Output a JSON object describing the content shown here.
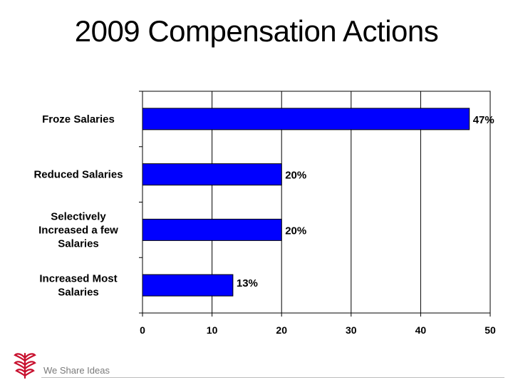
{
  "chart_data": {
    "type": "bar",
    "orientation": "horizontal",
    "title": "2009 Compensation Actions",
    "categories": [
      [
        "Froze Salaries"
      ],
      [
        "Reduced Salaries"
      ],
      [
        "Selectively",
        "Increased a few",
        "Salaries"
      ],
      [
        "Increased Most",
        "Salaries"
      ]
    ],
    "values": [
      47,
      20,
      20,
      13
    ],
    "data_labels": [
      "47%",
      "20%",
      "20%",
      "13%"
    ],
    "xlim": [
      0,
      50
    ],
    "xticks": [
      0,
      10,
      20,
      30,
      40,
      50
    ],
    "grid": "vertical",
    "bar_color": "#0000ff"
  },
  "footer": {
    "tagline": "We Share Ideas",
    "logo_color": "#c8102e"
  }
}
